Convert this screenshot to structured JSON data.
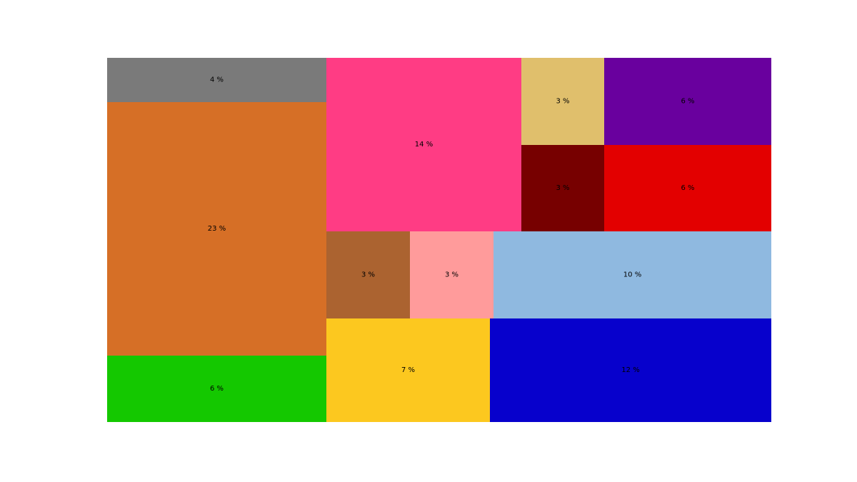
{
  "chart_data": {
    "type": "treemap",
    "tiles": [
      {
        "label": "4 %",
        "value": 4,
        "color": "#7a7a7a"
      },
      {
        "label": "23 %",
        "value": 23,
        "color": "#d66f26"
      },
      {
        "label": "6 %",
        "value": 6,
        "color": "#14c800"
      },
      {
        "label": "14 %",
        "value": 14,
        "color": "#ff3c84"
      },
      {
        "label": "3 %",
        "value": 3,
        "color": "#e0bf6c"
      },
      {
        "label": "6 %",
        "value": 6,
        "color": "#69009e"
      },
      {
        "label": "3 %",
        "value": 3,
        "color": "#770000"
      },
      {
        "label": "6 %",
        "value": 6,
        "color": "#e30000"
      },
      {
        "label": "3 %",
        "value": 3,
        "color": "#ab6330"
      },
      {
        "label": "3 %",
        "value": 3,
        "color": "#ff9b9b"
      },
      {
        "label": "10 %",
        "value": 10,
        "color": "#8fb9e0"
      },
      {
        "label": "7 %",
        "value": 7,
        "color": "#fcc81f"
      },
      {
        "label": "12 %",
        "value": 12,
        "color": "#0701cc"
      }
    ]
  }
}
